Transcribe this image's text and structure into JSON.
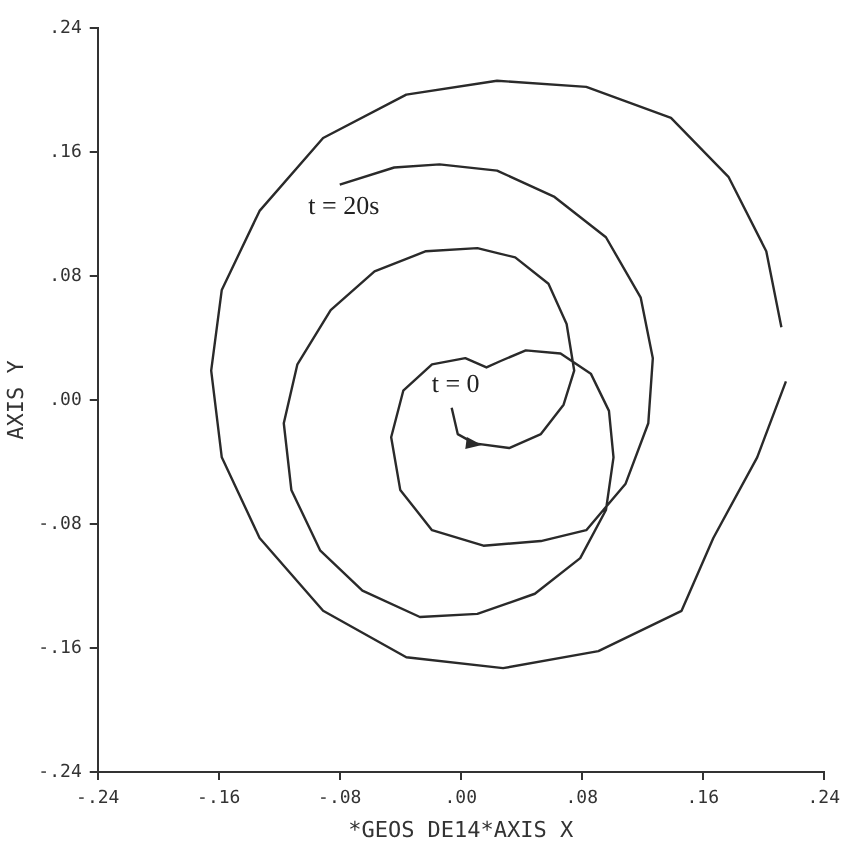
{
  "chart_data": {
    "type": "line",
    "xlabel": "*GEOS DE14*AXIS X",
    "ylabel": "AXIS Y",
    "xlim": [
      -0.24,
      0.24
    ],
    "ylim": [
      -0.24,
      0.24
    ],
    "xticks": [
      {
        "value": -0.24,
        "label": "-.24"
      },
      {
        "value": -0.16,
        "label": "-.16"
      },
      {
        "value": -0.08,
        "label": "-.08"
      },
      {
        "value": 0,
        "label": ".00"
      },
      {
        "value": 0.08,
        "label": ".08"
      },
      {
        "value": 0.16,
        "label": ".16"
      },
      {
        "value": 0.24,
        "label": ".24"
      }
    ],
    "yticks": [
      {
        "value": -0.24,
        "label": "-.24"
      },
      {
        "value": -0.16,
        "label": "-.16"
      },
      {
        "value": -0.08,
        "label": "-.08"
      },
      {
        "value": 0,
        "label": ".00"
      },
      {
        "value": 0.08,
        "label": ".08"
      },
      {
        "value": 0.16,
        "label": ".16"
      },
      {
        "value": 0.24,
        "label": ".24"
      }
    ],
    "grid": false,
    "legend": false,
    "marker": "none",
    "line_style": "solid",
    "annotations": [
      {
        "text": "t = 0",
        "x": -0.006,
        "y": -0.005
      },
      {
        "text": "t = 20s",
        "x": -0.08,
        "y": 0.139
      }
    ],
    "series": [
      {
        "color": "#2a2a2a",
        "x": [
          -0.006,
          -0.002,
          0.009,
          0.032,
          0.053,
          0.068,
          0.075,
          0.07,
          0.058,
          0.036,
          0.011,
          -0.023,
          -0.057,
          -0.086,
          -0.108,
          -0.117,
          -0.112,
          -0.093,
          -0.065,
          -0.027,
          0.011,
          0.049,
          0.079,
          0.096,
          0.101,
          0.098,
          0.086,
          0.066,
          0.043,
          0.026,
          0.017,
          0.003,
          -0.019,
          -0.038,
          -0.046,
          -0.04,
          -0.019,
          0.015,
          0.053,
          0.083,
          0.109,
          0.124,
          0.127,
          0.119,
          0.096,
          0.062,
          0.024,
          -0.014,
          -0.044,
          -0.08
        ],
        "values": [
          -0.005,
          -0.022,
          -0.028,
          -0.031,
          -0.022,
          -0.003,
          0.019,
          0.049,
          0.075,
          0.092,
          0.098,
          0.096,
          0.083,
          0.058,
          0.023,
          -0.015,
          -0.058,
          -0.097,
          -0.123,
          -0.14,
          -0.138,
          -0.125,
          -0.102,
          -0.071,
          -0.037,
          -0.007,
          0.017,
          0.03,
          0.032,
          0.025,
          0.021,
          0.027,
          0.023,
          0.006,
          -0.024,
          -0.058,
          -0.084,
          -0.094,
          -0.091,
          -0.084,
          -0.054,
          -0.015,
          0.027,
          0.066,
          0.105,
          0.131,
          0.148,
          0.152,
          0.15,
          0.139
        ]
      },
      {
        "color": "#2a2a2a",
        "x": [
          0.212,
          0.202,
          0.177,
          0.139,
          0.083,
          0.024,
          -0.036,
          -0.091,
          -0.133,
          -0.158,
          -0.165,
          -0.158,
          -0.133,
          -0.091,
          -0.036,
          0.028,
          0.091,
          0.146,
          0.167,
          0.196,
          0.215
        ],
        "values": [
          0.047,
          0.096,
          0.144,
          0.182,
          0.202,
          0.206,
          0.197,
          0.169,
          0.122,
          0.071,
          0.019,
          -0.037,
          -0.089,
          -0.136,
          -0.166,
          -0.173,
          -0.162,
          -0.136,
          -0.089,
          -0.037,
          0.012
        ]
      }
    ]
  }
}
